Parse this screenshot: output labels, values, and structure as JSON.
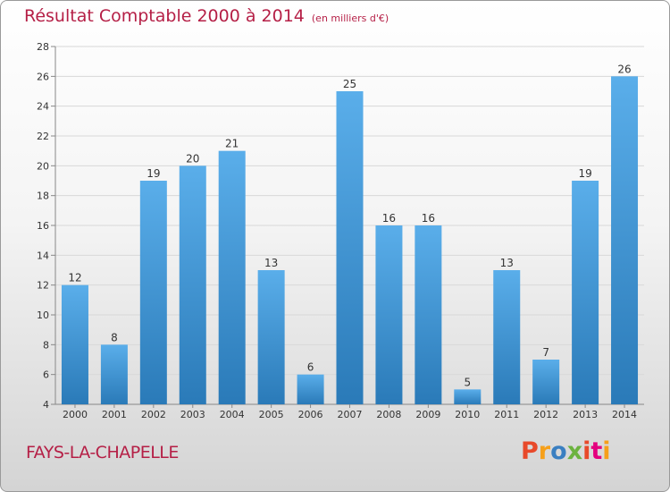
{
  "title": "Résultat Comptable 2000 à 2014",
  "subtitle": "(en milliers d'€)",
  "commune": "FAYS-LA-CHAPELLE",
  "logo": {
    "text": "Proxiti",
    "colors": [
      "#e8492a",
      "#f6a01a",
      "#3a7fc1",
      "#6cb33f",
      "#e8492a",
      "#e4007e",
      "#f6a01a"
    ]
  },
  "colors": {
    "bar_top": "#5aaeea",
    "bar_bottom": "#2a7ab8",
    "title": "#b51f46"
  },
  "chart_data": {
    "type": "bar",
    "title": "Résultat Comptable 2000 à 2014",
    "categories": [
      "2000",
      "2001",
      "2002",
      "2003",
      "2004",
      "2005",
      "2006",
      "2007",
      "2008",
      "2009",
      "2010",
      "2011",
      "2012",
      "2013",
      "2014"
    ],
    "values": [
      12,
      8,
      19,
      20,
      21,
      13,
      6,
      25,
      16,
      16,
      5,
      13,
      7,
      19,
      26
    ],
    "ylim": [
      4,
      28
    ],
    "yticks": [
      4,
      6,
      8,
      10,
      12,
      14,
      16,
      18,
      20,
      22,
      24,
      26,
      28
    ],
    "xlabel": "",
    "ylabel": "",
    "grid": true
  }
}
